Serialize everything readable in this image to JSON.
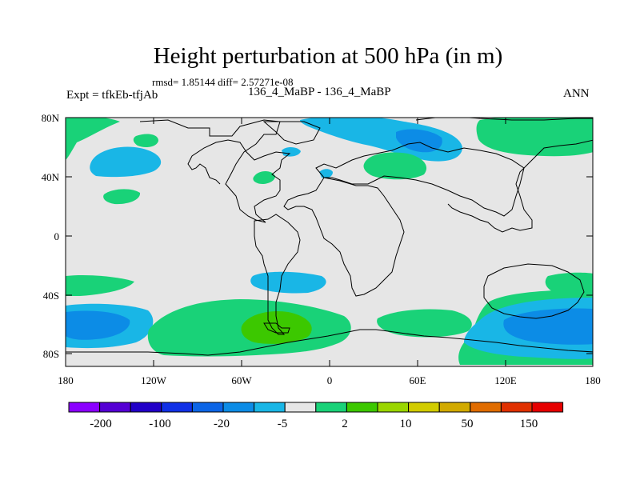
{
  "figure": {
    "title": "Height perturbation at 500 hPa (in m)",
    "stats": "rmsd= 1.85144  diff= 2.57271e-08",
    "expt": "Expt = tfkEb-tfjAb",
    "subtitle": "136_4_MaBP - 136_4_MaBP",
    "season": "ANN"
  },
  "axes": {
    "lat_ticks": [
      "80N",
      "40N",
      "0",
      "40S",
      "80S"
    ],
    "lon_ticks": [
      "180",
      "120W",
      "60W",
      "0",
      "60E",
      "120E",
      "180"
    ]
  },
  "colorbar": {
    "colors": [
      "#8b00ff",
      "#5500d4",
      "#2200c8",
      "#1030e6",
      "#0c65e6",
      "#0c8ce6",
      "#19b6e6",
      "#e6e6e6",
      "#19d278",
      "#3cc800",
      "#9ad600",
      "#d2cc00",
      "#d2aa00",
      "#e06c00",
      "#e03000",
      "#e60000"
    ],
    "labels": [
      "-200",
      "-100",
      "-20",
      "-5",
      "2",
      "10",
      "50",
      "150"
    ]
  },
  "map": {
    "background_color": "#e6e6e6",
    "contour_colors": {
      "negative_light": "#19b6e6",
      "negative_mid": "#0c8ce6",
      "positive_light": "#19d278",
      "positive_mid": "#3cc800"
    }
  }
}
